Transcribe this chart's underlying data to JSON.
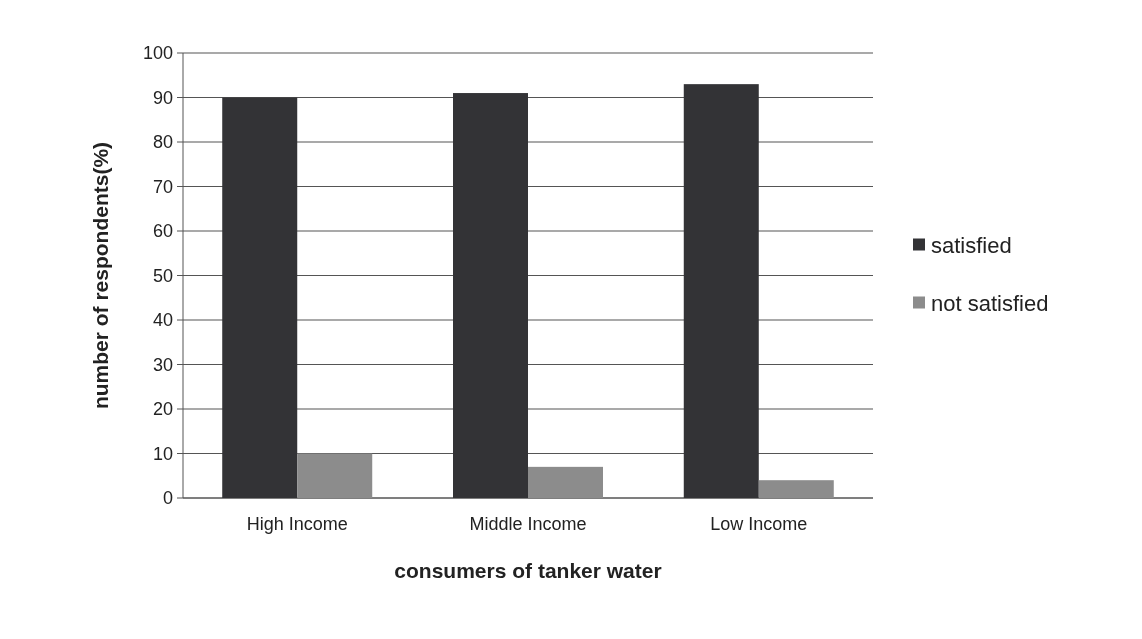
{
  "chart_data": {
    "type": "bar",
    "xlabel": "consumers of tanker water",
    "ylabel": "number of respondents(%)",
    "categories": [
      "High Income",
      "Middle Income",
      "Low Income"
    ],
    "series": [
      {
        "name": "satisfied",
        "color": "#333336",
        "values": [
          90,
          91,
          93
        ]
      },
      {
        "name": "not satisfied",
        "color": "#8c8c8c",
        "values": [
          10,
          7,
          4
        ]
      }
    ],
    "ylim": [
      0,
      100
    ],
    "yticks": [
      0,
      10,
      20,
      30,
      40,
      50,
      60,
      70,
      80,
      90,
      100
    ],
    "grid": "y",
    "legend": "right"
  }
}
